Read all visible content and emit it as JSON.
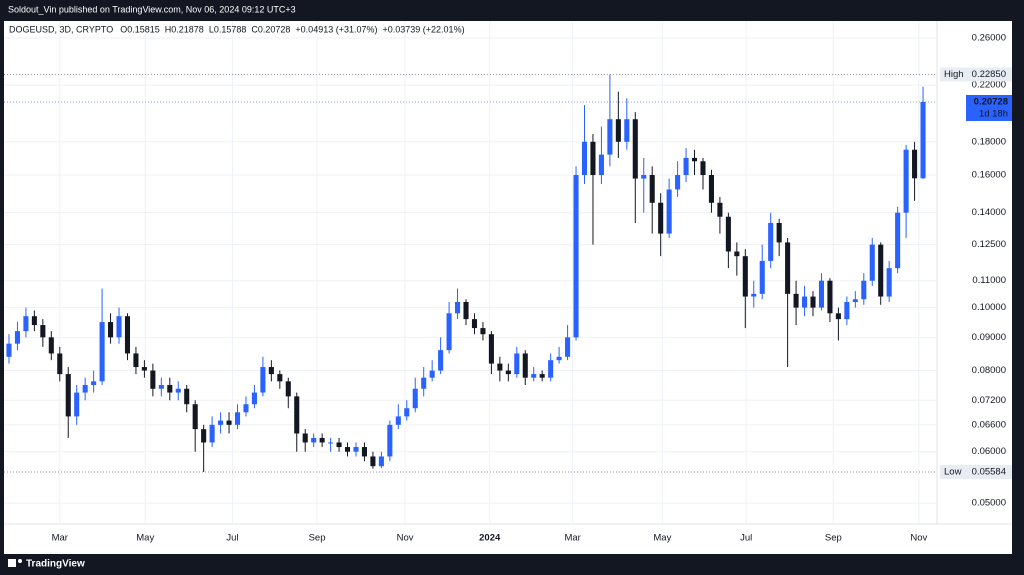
{
  "publisher_line": "Soldout_Vin published on TradingView.com, Nov 06, 2024 09:12 UTC+3",
  "footer_brand": "TradingView",
  "chart_data": {
    "type": "candlestick",
    "symbol": "DOGEUSD, 3D, CRYPTO",
    "ohlc_header": [
      {
        "label": "O",
        "value": "0.15815"
      },
      {
        "label": "H",
        "value": "0.21878"
      },
      {
        "label": "L",
        "value": "0.15788"
      },
      {
        "label": "C",
        "value": "0.20728"
      }
    ],
    "changes": [
      "+0.04913 (+31.07%)",
      "+0.03739 (+22.01%)"
    ],
    "log_scale": true,
    "grid": true,
    "up_color": "#2962ff",
    "down_color": "#131722",
    "ylim": [
      0.0471,
      0.2762
    ],
    "yticks": [
      {
        "value": 0.05,
        "label": "0.05000"
      },
      {
        "value": 0.06,
        "label": "0.06000"
      },
      {
        "value": 0.066,
        "label": "0.06600"
      },
      {
        "value": 0.072,
        "label": "0.07200"
      },
      {
        "value": 0.08,
        "label": "0.08000"
      },
      {
        "value": 0.09,
        "label": "0.09000"
      },
      {
        "value": 0.1,
        "label": "0.10000"
      },
      {
        "value": 0.11,
        "label": "0.11000"
      },
      {
        "value": 0.125,
        "label": "0.12500"
      },
      {
        "value": 0.14,
        "label": "0.14000"
      },
      {
        "value": 0.16,
        "label": "0.16000"
      },
      {
        "value": 0.18,
        "label": "0.18000"
      },
      {
        "value": 0.22,
        "label": "0.22000"
      },
      {
        "value": 0.26,
        "label": "0.26000"
      }
    ],
    "xlim": [
      -0.59,
      109.65
    ],
    "xticks": [
      {
        "value": 6,
        "label": "Mar"
      },
      {
        "value": 16.1,
        "label": "May"
      },
      {
        "value": 26.4,
        "label": "Jul"
      },
      {
        "value": 36.4,
        "label": "Sep"
      },
      {
        "value": 46.8,
        "label": "Nov"
      },
      {
        "value": 56.8,
        "label": "2024"
      },
      {
        "value": 66.6,
        "label": "Mar"
      },
      {
        "value": 77.2,
        "label": "May"
      },
      {
        "value": 87.1,
        "label": "Jul"
      },
      {
        "value": 97.4,
        "label": "Sep"
      },
      {
        "value": 107.5,
        "label": "Nov"
      }
    ],
    "high_marker": {
      "name": "High",
      "price": {
        "value": 0.2285,
        "label": "0.22850"
      }
    },
    "low_marker": {
      "name": "Low",
      "price": {
        "value": 0.05584,
        "label": "0.05584"
      }
    },
    "last_price": {
      "price": {
        "value": 0.20728,
        "label": "0.20728"
      },
      "countdown": "1d 18h"
    },
    "open": [
      0.084,
      0.088,
      0.092,
      0.097,
      0.094,
      0.09,
      0.085,
      0.079,
      0.068,
      0.074,
      0.076,
      0.077,
      0.095,
      0.09,
      0.097,
      0.085,
      0.081,
      0.08,
      0.075,
      0.076,
      0.074,
      0.075,
      0.071,
      0.065,
      0.062,
      0.066,
      0.067,
      0.066,
      0.069,
      0.071,
      0.074,
      0.081,
      0.079,
      0.077,
      0.073,
      0.064,
      0.062,
      0.063,
      0.062,
      0.062,
      0.061,
      0.06,
      0.061,
      0.059,
      0.057,
      0.059,
      0.066,
      0.068,
      0.07,
      0.075,
      0.078,
      0.08,
      0.086,
      0.098,
      0.102,
      0.096,
      0.093,
      0.091,
      0.082,
      0.08,
      0.079,
      0.085,
      0.078,
      0.079,
      0.078,
      0.083,
      0.084,
      0.09,
      0.16,
      0.18,
      0.16,
      0.172,
      0.195,
      0.18,
      0.195,
      0.158,
      0.16,
      0.145,
      0.13,
      0.152,
      0.16,
      0.17,
      0.168,
      0.16,
      0.145,
      0.138,
      0.122,
      0.12,
      0.104,
      0.105,
      0.118,
      0.135,
      0.126,
      0.105,
      0.1,
      0.104,
      0.1,
      0.11,
      0.098,
      0.096,
      0.102,
      0.103,
      0.11,
      0.125,
      0.104,
      0.115,
      0.14,
      0.175,
      0.15815
    ],
    "high": [
      0.091,
      0.095,
      0.1,
      0.099,
      0.096,
      0.092,
      0.087,
      0.081,
      0.076,
      0.078,
      0.08,
      0.107,
      0.098,
      0.1,
      0.098,
      0.087,
      0.083,
      0.082,
      0.078,
      0.078,
      0.077,
      0.076,
      0.072,
      0.066,
      0.068,
      0.069,
      0.069,
      0.071,
      0.073,
      0.076,
      0.084,
      0.083,
      0.08,
      0.078,
      0.074,
      0.065,
      0.064,
      0.064,
      0.063,
      0.063,
      0.062,
      0.062,
      0.062,
      0.06,
      0.06,
      0.067,
      0.071,
      0.072,
      0.078,
      0.081,
      0.083,
      0.09,
      0.102,
      0.107,
      0.103,
      0.098,
      0.095,
      0.092,
      0.084,
      0.082,
      0.087,
      0.086,
      0.081,
      0.08,
      0.085,
      0.087,
      0.094,
      0.165,
      0.205,
      0.185,
      0.19,
      0.2285,
      0.215,
      0.21,
      0.2,
      0.17,
      0.165,
      0.15,
      0.158,
      0.168,
      0.176,
      0.175,
      0.17,
      0.163,
      0.148,
      0.14,
      0.126,
      0.123,
      0.11,
      0.125,
      0.14,
      0.137,
      0.128,
      0.11,
      0.108,
      0.106,
      0.113,
      0.111,
      0.1,
      0.104,
      0.106,
      0.113,
      0.128,
      0.126,
      0.118,
      0.143,
      0.178,
      0.18,
      0.21878
    ],
    "low": [
      0.082,
      0.086,
      0.09,
      0.092,
      0.087,
      0.083,
      0.077,
      0.063,
      0.066,
      0.072,
      0.074,
      0.076,
      0.088,
      0.088,
      0.083,
      0.079,
      0.078,
      0.073,
      0.073,
      0.072,
      0.072,
      0.069,
      0.06,
      0.05584,
      0.061,
      0.064,
      0.064,
      0.065,
      0.068,
      0.07,
      0.073,
      0.077,
      0.075,
      0.07,
      0.06,
      0.06,
      0.061,
      0.061,
      0.06,
      0.06,
      0.059,
      0.059,
      0.058,
      0.0565,
      0.0566,
      0.058,
      0.065,
      0.067,
      0.069,
      0.073,
      0.077,
      0.079,
      0.085,
      0.096,
      0.094,
      0.091,
      0.089,
      0.079,
      0.077,
      0.077,
      0.078,
      0.076,
      0.077,
      0.077,
      0.077,
      0.082,
      0.083,
      0.089,
      0.155,
      0.125,
      0.155,
      0.165,
      0.17,
      0.175,
      0.135,
      0.14,
      0.13,
      0.12,
      0.128,
      0.148,
      0.156,
      0.16,
      0.152,
      0.14,
      0.13,
      0.115,
      0.112,
      0.093,
      0.1,
      0.103,
      0.115,
      0.12,
      0.081,
      0.094,
      0.097,
      0.097,
      0.099,
      0.095,
      0.089,
      0.094,
      0.1,
      0.101,
      0.108,
      0.101,
      0.102,
      0.113,
      0.128,
      0.146,
      0.15788
    ],
    "close": [
      0.088,
      0.092,
      0.097,
      0.094,
      0.09,
      0.085,
      0.079,
      0.068,
      0.074,
      0.076,
      0.077,
      0.095,
      0.09,
      0.097,
      0.085,
      0.081,
      0.08,
      0.075,
      0.076,
      0.074,
      0.075,
      0.071,
      0.065,
      0.062,
      0.066,
      0.067,
      0.066,
      0.069,
      0.071,
      0.074,
      0.081,
      0.079,
      0.077,
      0.073,
      0.064,
      0.062,
      0.063,
      0.062,
      0.062,
      0.061,
      0.06,
      0.061,
      0.059,
      0.057,
      0.059,
      0.066,
      0.068,
      0.07,
      0.075,
      0.078,
      0.08,
      0.086,
      0.098,
      0.102,
      0.096,
      0.093,
      0.091,
      0.082,
      0.08,
      0.079,
      0.085,
      0.078,
      0.079,
      0.078,
      0.083,
      0.084,
      0.09,
      0.16,
      0.18,
      0.16,
      0.172,
      0.195,
      0.18,
      0.195,
      0.158,
      0.16,
      0.145,
      0.13,
      0.152,
      0.16,
      0.17,
      0.168,
      0.16,
      0.145,
      0.138,
      0.122,
      0.12,
      0.104,
      0.105,
      0.118,
      0.135,
      0.126,
      0.105,
      0.1,
      0.104,
      0.1,
      0.11,
      0.098,
      0.096,
      0.102,
      0.103,
      0.11,
      0.125,
      0.104,
      0.115,
      0.14,
      0.175,
      0.15815,
      0.20728
    ]
  }
}
